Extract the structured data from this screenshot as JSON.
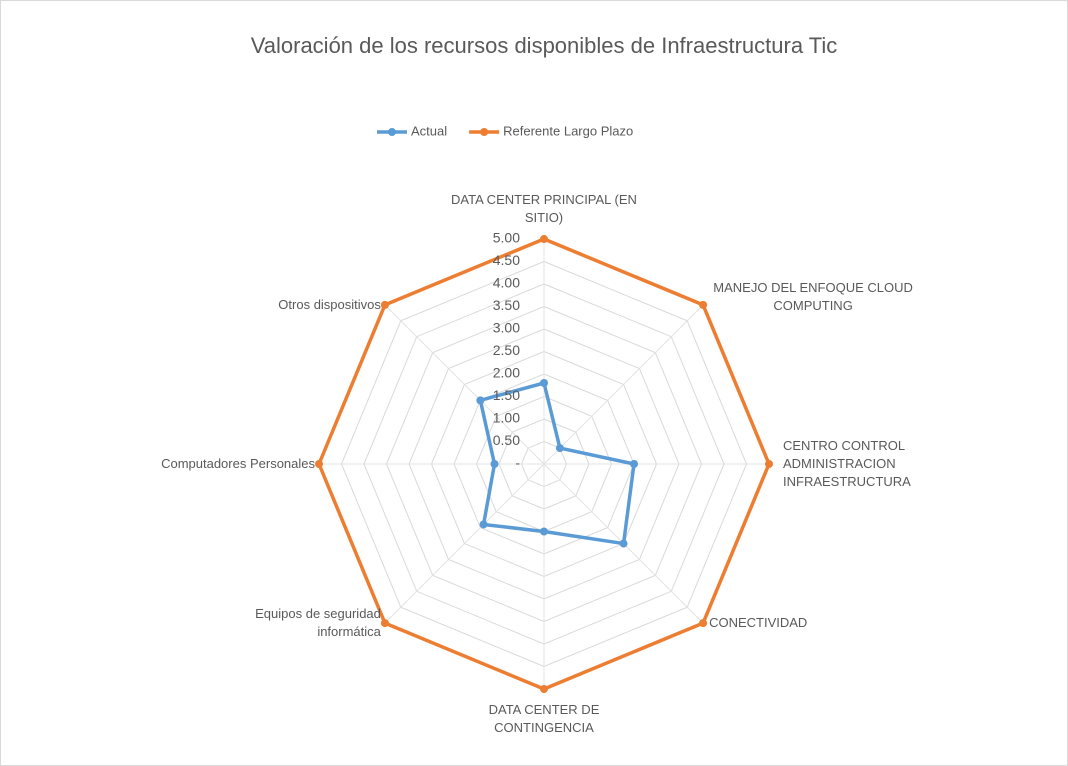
{
  "chart_data": {
    "type": "radar",
    "title": "Valoración de los recursos disponibles de Infraestructura Tic",
    "categories": [
      "DATA CENTER PRINCIPAL (EN SITIO)",
      "MANEJO DEL ENFOQUE CLOUD COMPUTING",
      "CENTRO CONTROL ADMINISTRACION INFRAESTRUCTURA",
      "CONECTIVIDAD",
      "DATA CENTER DE CONTINGENCIA",
      "Equipos de seguridad informática",
      "Computadores Personales",
      "Otros dispositivos"
    ],
    "series": [
      {
        "name": "Actual",
        "color": "#5b9bd5",
        "values": [
          1.8,
          0.5,
          2.0,
          2.5,
          1.5,
          1.9,
          1.1,
          2.0
        ]
      },
      {
        "name": "Referente Largo Plazo",
        "color": "#ed7d31",
        "values": [
          5,
          5,
          5,
          5,
          5,
          5,
          5,
          5
        ]
      }
    ],
    "ylim": [
      0,
      5
    ],
    "yticks": [
      {
        "value": 0,
        "label": "-"
      },
      {
        "value": 0.5,
        "label": "0.50"
      },
      {
        "value": 1,
        "label": "1.00"
      },
      {
        "value": 1.5,
        "label": "1.50"
      },
      {
        "value": 2,
        "label": "2.00"
      },
      {
        "value": 2.5,
        "label": "2.50"
      },
      {
        "value": 3,
        "label": "3.00"
      },
      {
        "value": 3.5,
        "label": "3.50"
      },
      {
        "value": 4,
        "label": "4.00"
      },
      {
        "value": 4.5,
        "label": "4.50"
      },
      {
        "value": 5,
        "label": "5.00"
      }
    ],
    "grid": true,
    "legend": "top"
  }
}
